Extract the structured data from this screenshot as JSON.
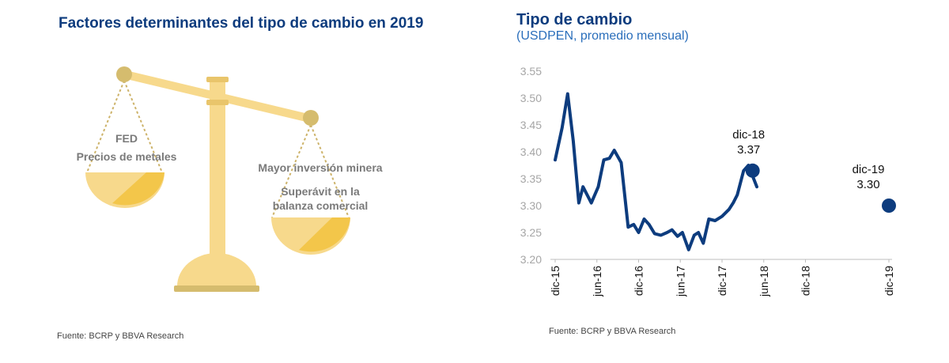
{
  "left_panel": {
    "title": "Factores determinantes del tipo de cambio en 2019",
    "left_pan_labels": [
      "FED",
      "Precios de metales"
    ],
    "right_pan_labels": [
      "Mayor inversión minera",
      "Superávit en la",
      "balanza comercial"
    ],
    "source": "Fuente: BCRP y BBVA Research"
  },
  "right_panel": {
    "title": "Tipo de cambio",
    "subtitle": "(USDPEN, promedio mensual)",
    "source": "Fuente: BCRP y BBVA Research"
  },
  "colors": {
    "scale_main": "#f7d98c",
    "scale_dark": "#f3c64a",
    "scale_gold": "#d5bc6e",
    "line": "#0d3c7e"
  },
  "chart_data": {
    "type": "line",
    "title": "Tipo de cambio",
    "subtitle": "(USDPEN, promedio mensual)",
    "ylim": [
      3.2,
      3.55
    ],
    "yticks": [
      "3.20",
      "3.25",
      "3.30",
      "3.35",
      "3.40",
      "3.45",
      "3.50",
      "3.55"
    ],
    "xticks": [
      {
        "label": "dic-15",
        "t": 0
      },
      {
        "label": "jun-16",
        "t": 6
      },
      {
        "label": "dic-16",
        "t": 12
      },
      {
        "label": "jun-17",
        "t": 18
      },
      {
        "label": "dic-17",
        "t": 24
      },
      {
        "label": "jun-18",
        "t": 30
      },
      {
        "label": "dic-18",
        "t": 36
      },
      {
        "label": "dic-19",
        "t": 48
      }
    ],
    "series": [
      {
        "values": [
          [
            0,
            3.385
          ],
          [
            1,
            3.445
          ],
          [
            1.8,
            3.508
          ],
          [
            2.6,
            3.42
          ],
          [
            3.4,
            3.305
          ],
          [
            4,
            3.335
          ],
          [
            5.2,
            3.305
          ],
          [
            6.2,
            3.335
          ],
          [
            7,
            3.385
          ],
          [
            7.8,
            3.388
          ],
          [
            8.5,
            3.403
          ],
          [
            9.5,
            3.38
          ],
          [
            10.5,
            3.26
          ],
          [
            11.3,
            3.265
          ],
          [
            12,
            3.25
          ],
          [
            12.8,
            3.275
          ],
          [
            13.5,
            3.265
          ],
          [
            14.3,
            3.248
          ],
          [
            15.2,
            3.245
          ],
          [
            16.1,
            3.25
          ],
          [
            16.8,
            3.255
          ],
          [
            17.6,
            3.243
          ],
          [
            18.3,
            3.25
          ],
          [
            19.2,
            3.218
          ],
          [
            20,
            3.245
          ],
          [
            20.6,
            3.25
          ],
          [
            21.3,
            3.23
          ],
          [
            22.1,
            3.275
          ],
          [
            23,
            3.272
          ],
          [
            24,
            3.28
          ],
          [
            25,
            3.293
          ],
          [
            25.6,
            3.305
          ],
          [
            26.2,
            3.32
          ],
          [
            27.1,
            3.365
          ],
          [
            27.8,
            3.375
          ],
          [
            28.4,
            3.355
          ],
          [
            29,
            3.335
          ]
        ]
      }
    ],
    "markers": [
      {
        "t": 28.4,
        "value": 3.365,
        "label_date": "dic-18",
        "label_value": "3.37"
      },
      {
        "t": 48,
        "value": 3.3,
        "label_date": "dic-19",
        "label_value": "3.30"
      }
    ]
  }
}
